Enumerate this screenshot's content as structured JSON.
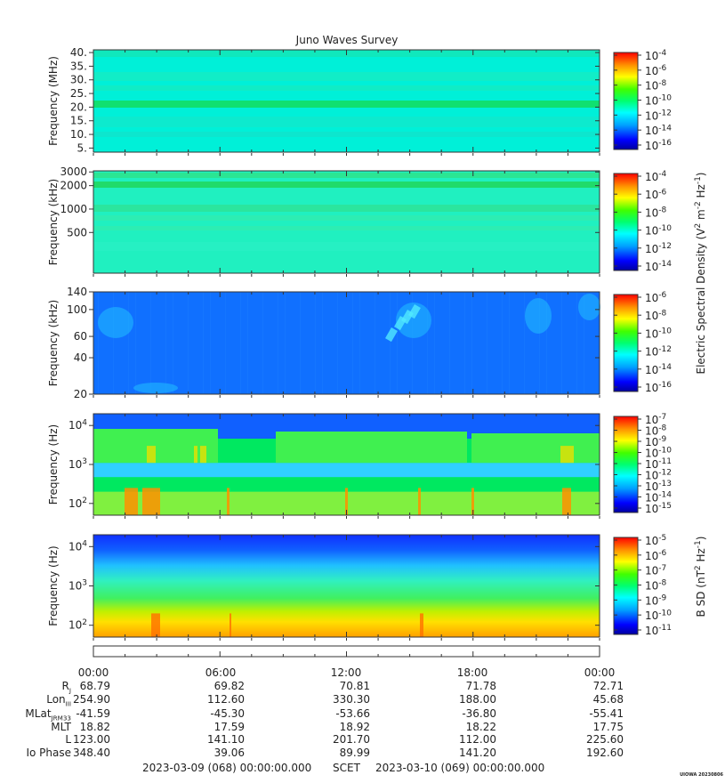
{
  "chart_data": {
    "type": "heatmap",
    "title": "Juno Waves Survey",
    "panels": [
      {
        "ylabel": "Frequency (MHz)",
        "yscale": "linear",
        "ylim": [
          3.5,
          41
        ],
        "yticks": [
          {
            "v": 5,
            "label": "5."
          },
          {
            "v": 10,
            "label": "10."
          },
          {
            "v": 15,
            "label": "15."
          },
          {
            "v": 20,
            "label": "20."
          },
          {
            "v": 25,
            "label": "25."
          },
          {
            "v": 30,
            "label": "30."
          },
          {
            "v": 35,
            "label": "35."
          },
          {
            "v": 40,
            "label": "40."
          }
        ],
        "colorbar_ticks": [
          "10^-4",
          "10^-6",
          "10^-8",
          "10^-10",
          "10^-12",
          "10^-14",
          "10^-16"
        ],
        "colorbar_range_exp": [
          -17,
          -4
        ]
      },
      {
        "ylabel": "Frequency (kHz)",
        "yscale": "log",
        "ylim": [
          150,
          3100
        ],
        "yticks": [
          {
            "v": 500,
            "label": "500"
          },
          {
            "v": 1000,
            "label": "1000"
          },
          {
            "v": 2000,
            "label": "2000"
          },
          {
            "v": 3000,
            "label": "3000"
          }
        ],
        "colorbar_ticks": [
          "10^-4",
          "10^-6",
          "10^-8",
          "10^-10",
          "10^-12",
          "10^-14"
        ],
        "colorbar_range_exp": [
          -15,
          -3
        ]
      },
      {
        "ylabel": "Frequency (kHz)",
        "yscale": "log",
        "ylim": [
          20,
          140
        ],
        "yticks": [
          {
            "v": 20,
            "label": "20"
          },
          {
            "v": 40,
            "label": "40"
          },
          {
            "v": 60,
            "label": "60"
          },
          {
            "v": 100,
            "label": "100"
          },
          {
            "v": 140,
            "label": "140"
          }
        ],
        "colorbar_ticks": [
          "10^-6",
          "10^-8",
          "10^-10",
          "10^-12",
          "10^-14",
          "10^-16"
        ],
        "colorbar_range_exp": [
          -16,
          -6
        ]
      },
      {
        "ylabel": "Frequency (Hz)",
        "yscale": "log",
        "ylim": [
          50,
          20000
        ],
        "yticks": [
          {
            "v": 100,
            "label": "10^2"
          },
          {
            "v": 1000,
            "label": "10^3"
          },
          {
            "v": 10000,
            "label": "10^4"
          }
        ],
        "colorbar_ticks": [
          "10^-7",
          "10^-8",
          "10^-9",
          "10^-10",
          "10^-11",
          "10^-12",
          "10^-13",
          "10^-14",
          "10^-15"
        ],
        "colorbar_range_exp": [
          -15,
          -7
        ]
      },
      {
        "ylabel": "Frequency (Hz)",
        "yscale": "log",
        "ylim": [
          50,
          20000
        ],
        "yticks": [
          {
            "v": 100,
            "label": "10^2"
          },
          {
            "v": 1000,
            "label": "10^3"
          },
          {
            "v": 10000,
            "label": "10^4"
          }
        ],
        "colorbar_ticks": [
          "10^-5",
          "10^-6",
          "10^-7",
          "10^-8",
          "10^-9",
          "10^-10",
          "10^-11"
        ],
        "colorbar_range_exp": [
          -11,
          -4.5
        ]
      }
    ],
    "colorbar_labels": [
      "Electric Spectral Density (V^2 m^-2 Hz^-1)",
      "B SD (nT^2 Hz^-1)"
    ],
    "x_tick_labels": [
      "00:00",
      "06:00",
      "12:00",
      "18:00",
      "00:00"
    ],
    "ephemeris": [
      {
        "label": "R_J",
        "values": [
          "68.79",
          "69.82",
          "70.81",
          "71.78",
          "72.71"
        ]
      },
      {
        "label": "Lon_III",
        "values": [
          "254.90",
          "112.60",
          "330.30",
          "188.00",
          "45.68"
        ]
      },
      {
        "label": "MLat_JRM33",
        "values": [
          "-41.59",
          "-45.30",
          "-53.66",
          "-36.80",
          "-55.41"
        ]
      },
      {
        "label": "MLT",
        "values": [
          "18.82",
          "17.59",
          "18.92",
          "18.22",
          "17.75"
        ]
      },
      {
        "label": "L",
        "values": [
          "123.00",
          "141.10",
          "201.70",
          "112.00",
          "225.60"
        ]
      },
      {
        "label": "Io Phase",
        "values": [
          "348.40",
          "39.06",
          "89.99",
          "141.20",
          "192.60"
        ]
      }
    ],
    "footer": {
      "start": "2023-03-09 (068) 00:00:00.000",
      "scet": "SCET",
      "end": "2023-03-10 (069) 00:00:00.000",
      "stamp": "UIOWA 20230806"
    }
  }
}
